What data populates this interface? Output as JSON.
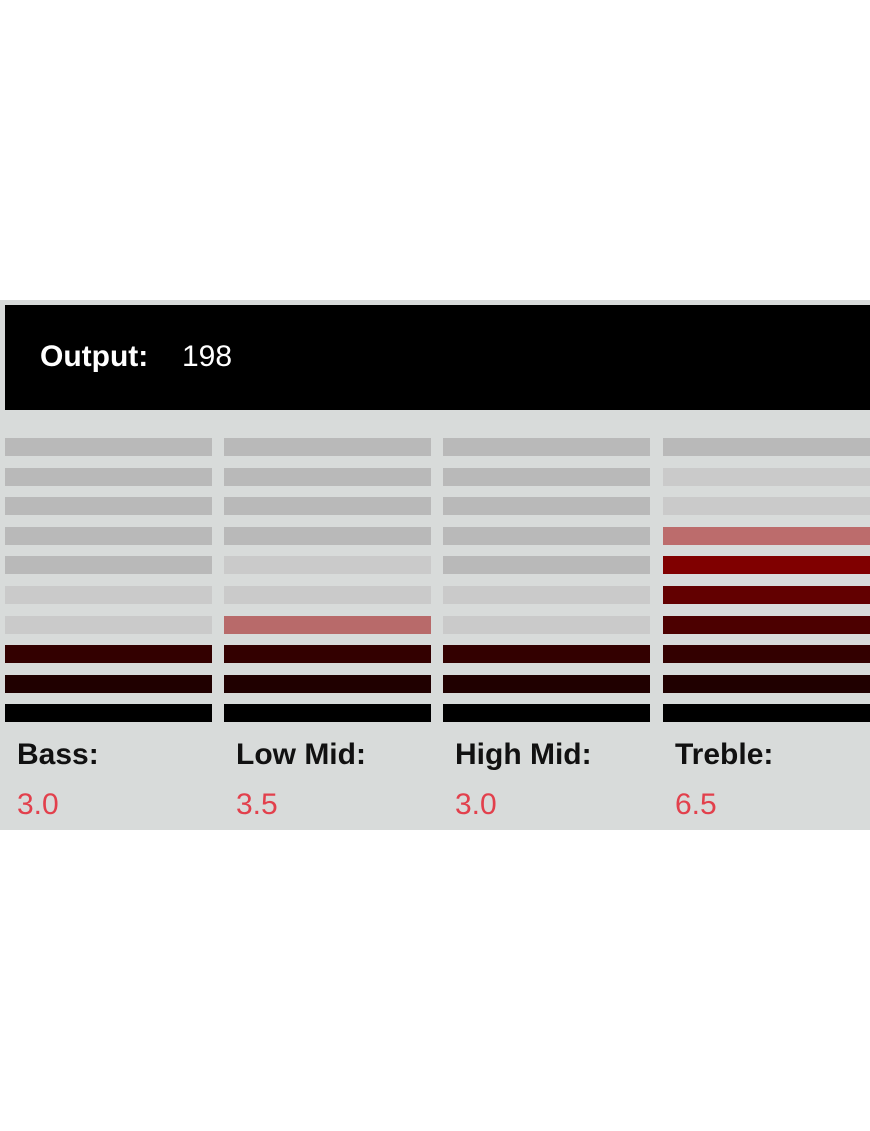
{
  "header": {
    "label": "Output:",
    "value": "198"
  },
  "bands": [
    {
      "name": "Bass:",
      "value": "3.0"
    },
    {
      "name": "Low Mid:",
      "value": "3.5"
    },
    {
      "name": "High Mid:",
      "value": "3.0"
    },
    {
      "name": "Treble:",
      "value": "6.5"
    }
  ]
}
